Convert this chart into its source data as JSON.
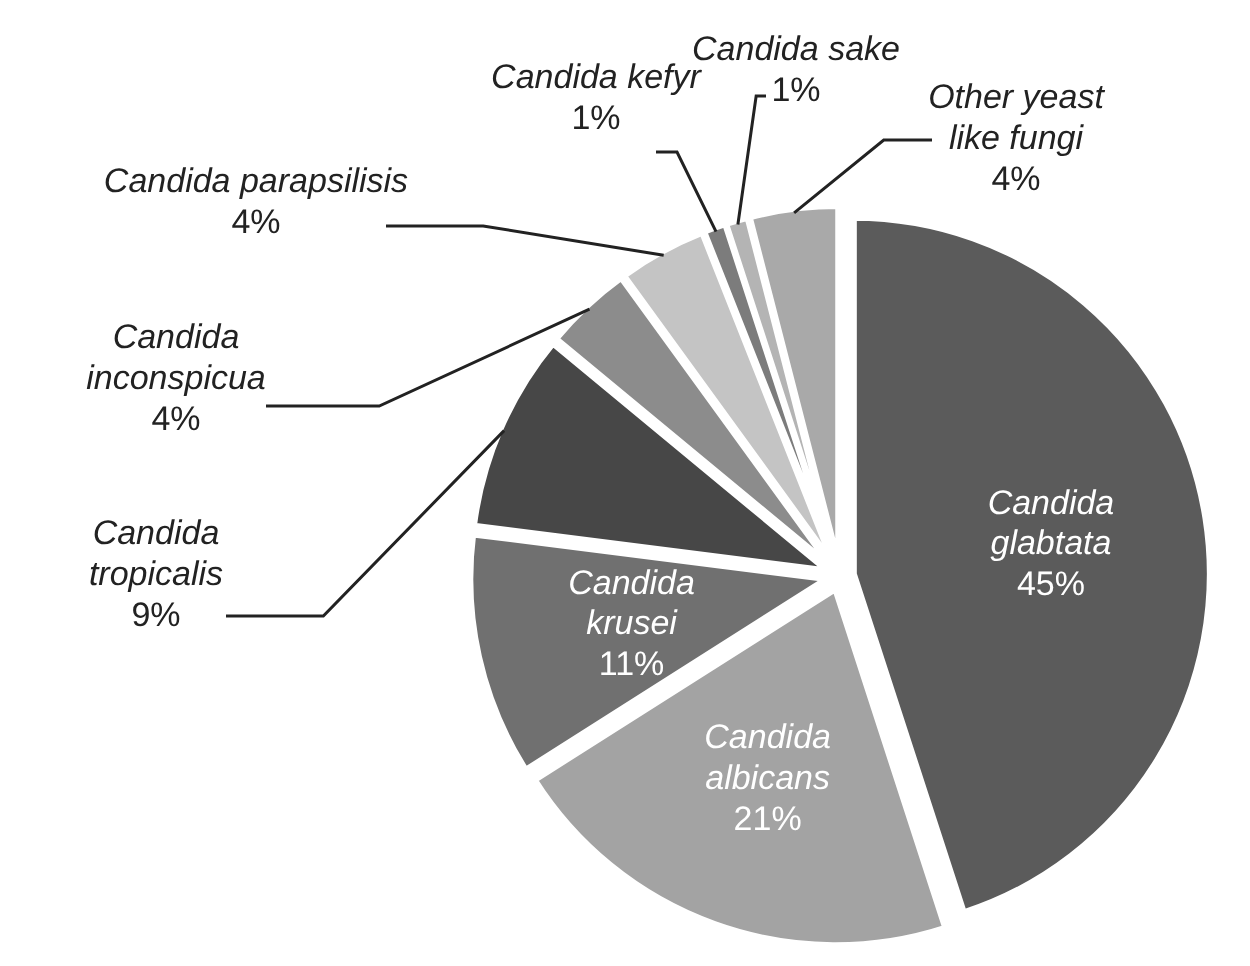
{
  "chart_data": {
    "type": "pie",
    "categories": [
      "Candida glabtata",
      "Candida albicans",
      "Candida krusei",
      "Candida tropicalis",
      "Candida inconspicua",
      "Candida parapsilisis",
      "Candida kefyr",
      "Candida sake",
      "Other yeast like fungi"
    ],
    "values": [
      45,
      21,
      11,
      9,
      4,
      4,
      1,
      1,
      4
    ],
    "colors": [
      "#5b5b5b",
      "#a3a3a3",
      "#707070",
      "#474747",
      "#8c8c8c",
      "#c4c4c4",
      "#7c7c7c",
      "#b4b4b4",
      "#a9a9a9"
    ],
    "value_labels": [
      "45%",
      "21%",
      "11%",
      "9%",
      "4%",
      "4%",
      "1%",
      "1%",
      "4%"
    ]
  }
}
